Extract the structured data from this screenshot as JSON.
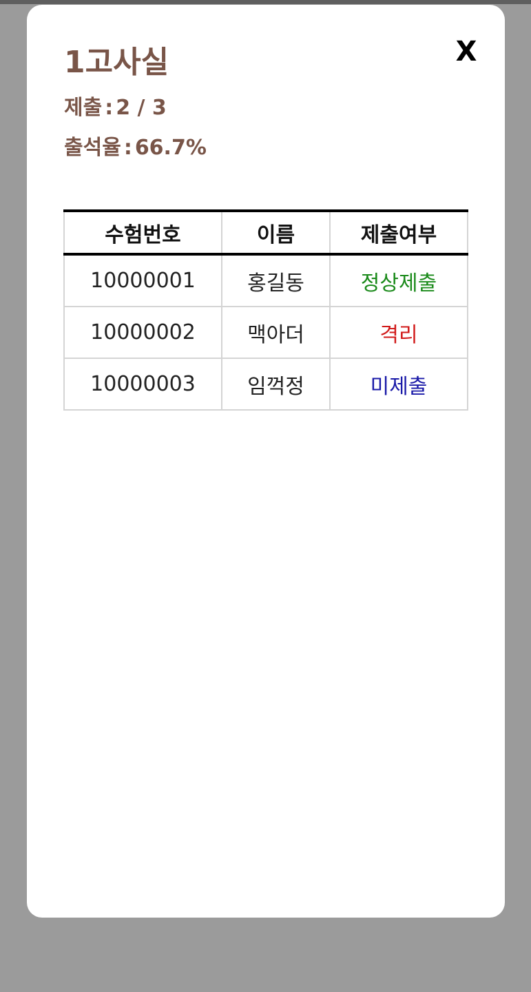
{
  "modal": {
    "close_label": "X",
    "title": "1고사실",
    "submit_label": "제출",
    "submit_value": "2 / 3",
    "attendance_label": "출석율",
    "attendance_value": "66.7%",
    "separator": ":"
  },
  "table": {
    "headers": {
      "id": "수험번호",
      "name": "이름",
      "status": "제출여부"
    },
    "rows": [
      {
        "id": "10000001",
        "name": "홍길동",
        "status": "정상제출"
      },
      {
        "id": "10000002",
        "name": "맥아더",
        "status": "격리"
      },
      {
        "id": "10000003",
        "name": "임꺽정",
        "status": "미제출"
      }
    ]
  },
  "colors": {
    "title": "#795548",
    "status_submitted": "#1a8a1a",
    "status_isolated": "#d11a1a",
    "status_missing": "#1a1aa8",
    "backdrop": "#9b9b9b"
  }
}
